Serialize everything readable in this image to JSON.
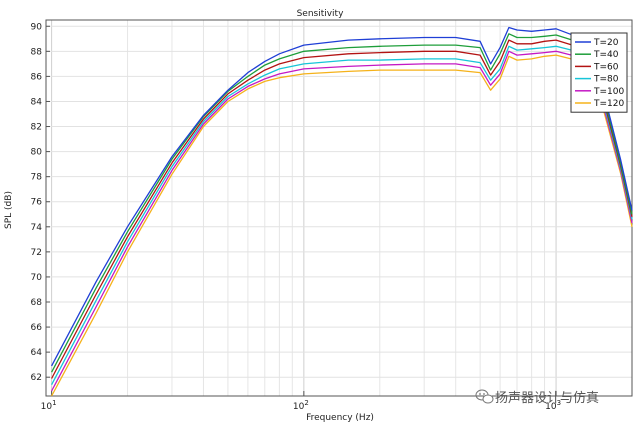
{
  "chart_data": {
    "type": "line",
    "title": "Sensitivity",
    "xlabel": "Frequency (Hz)",
    "ylabel": "SPL (dB)",
    "xscale": "log",
    "xlim": [
      9.5,
      2000
    ],
    "ylim": [
      60.5,
      90.5
    ],
    "grid": true,
    "legend_position": "top-right",
    "x_ticks": [
      {
        "value": 10,
        "base": "10",
        "exp": "1"
      },
      {
        "value": 100,
        "base": "10",
        "exp": "2"
      },
      {
        "value": 1000,
        "base": "10",
        "exp": "3"
      }
    ],
    "y_ticks": [
      62,
      64,
      66,
      68,
      70,
      72,
      74,
      76,
      78,
      80,
      82,
      84,
      86,
      88,
      90
    ],
    "x": [
      10,
      15,
      20,
      30,
      40,
      50,
      60,
      70,
      80,
      100,
      150,
      200,
      300,
      400,
      500,
      550,
      600,
      650,
      700,
      800,
      900,
      1000,
      1200,
      1500,
      1800,
      2000
    ],
    "series": [
      {
        "name": "T=20",
        "color": "#1f3fd6",
        "values": [
          62.9,
          69.6,
          74.0,
          79.6,
          82.9,
          84.9,
          86.3,
          87.2,
          87.8,
          88.5,
          88.9,
          89.0,
          89.1,
          89.1,
          88.8,
          87.0,
          88.3,
          89.9,
          89.7,
          89.6,
          89.7,
          89.8,
          89.2,
          85.7,
          79.4,
          75.3
        ]
      },
      {
        "name": "T=40",
        "color": "#1e9e3a",
        "values": [
          62.4,
          69.1,
          73.6,
          79.4,
          82.8,
          84.8,
          86.0,
          86.9,
          87.4,
          88.0,
          88.3,
          88.4,
          88.5,
          88.5,
          88.3,
          86.5,
          87.8,
          89.4,
          89.1,
          89.1,
          89.2,
          89.3,
          88.8,
          85.4,
          79.1,
          75.0
        ]
      },
      {
        "name": "T=60",
        "color": "#b31313",
        "values": [
          61.9,
          68.6,
          73.2,
          79.1,
          82.6,
          84.6,
          85.7,
          86.5,
          87.0,
          87.5,
          87.8,
          87.9,
          88.0,
          88.0,
          87.7,
          86.1,
          87.2,
          88.9,
          88.6,
          88.6,
          88.8,
          88.9,
          88.4,
          85.1,
          78.9,
          74.8
        ]
      },
      {
        "name": "T=80",
        "color": "#17c5d8",
        "values": [
          61.4,
          68.1,
          72.8,
          78.8,
          82.4,
          84.4,
          85.4,
          86.1,
          86.6,
          87.0,
          87.3,
          87.3,
          87.4,
          87.4,
          87.1,
          85.7,
          86.6,
          88.4,
          88.1,
          88.2,
          88.3,
          88.4,
          88.0,
          84.8,
          78.7,
          74.6
        ]
      },
      {
        "name": "T=100",
        "color": "#c419c4",
        "values": [
          60.9,
          67.6,
          72.4,
          78.5,
          82.2,
          84.2,
          85.2,
          85.8,
          86.2,
          86.6,
          86.8,
          86.9,
          87.0,
          87.0,
          86.7,
          85.3,
          86.2,
          88.0,
          87.7,
          87.8,
          87.9,
          88.0,
          87.6,
          84.5,
          78.5,
          74.3
        ]
      },
      {
        "name": "T=120",
        "color": "#f5b21a",
        "values": [
          60.5,
          67.1,
          72.0,
          78.2,
          82.0,
          84.0,
          85.0,
          85.6,
          85.9,
          86.2,
          86.4,
          86.5,
          86.5,
          86.5,
          86.3,
          84.9,
          85.8,
          87.6,
          87.3,
          87.4,
          87.6,
          87.7,
          87.3,
          84.2,
          78.3,
          74.0
        ]
      }
    ]
  },
  "watermark": {
    "text": "扬声器设计与仿真",
    "icon": "wechat-icon"
  }
}
